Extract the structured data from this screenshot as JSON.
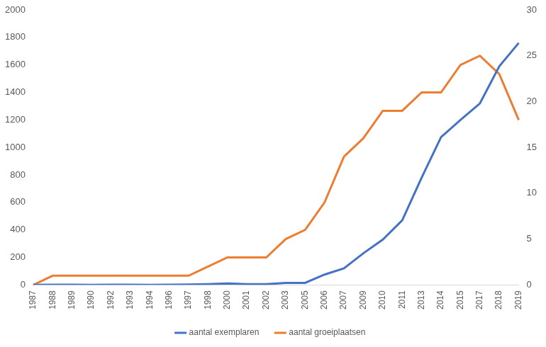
{
  "chart_data": {
    "type": "line",
    "categories": [
      "1987",
      "1988",
      "1989",
      "1990",
      "1992",
      "1993",
      "1994",
      "1996",
      "1997",
      "1998",
      "2000",
      "2001",
      "2002",
      "2003",
      "2005",
      "2006",
      "2007",
      "2009",
      "2010",
      "2011",
      "2013",
      "2014",
      "2015",
      "2017",
      "2018",
      "2019"
    ],
    "series": [
      {
        "name": "aantal exemplaren",
        "color": "#4472c4",
        "values": [
          0,
          2,
          2,
          0,
          2,
          2,
          0,
          2,
          3,
          5,
          10,
          5,
          5,
          15,
          15,
          75,
          120,
          230,
          330,
          470,
          780,
          1075,
          1200,
          1320,
          1590,
          1760
        ]
      },
      {
        "name": "aantal groeiplaatsen",
        "color": "#ed7d31",
        "axis": "y2",
        "values": [
          0,
          1,
          1,
          1,
          1,
          1,
          1,
          1,
          1,
          2,
          3,
          3,
          3,
          5,
          6,
          9,
          14,
          16,
          19,
          19,
          21,
          21,
          24,
          25,
          23,
          18
        ]
      }
    ],
    "ylim": [
      0,
      2000
    ],
    "yticks": [
      0,
      200,
      400,
      600,
      800,
      1000,
      1200,
      1400,
      1600,
      1800,
      2000
    ],
    "y2lim": [
      0,
      30
    ],
    "y2ticks": [
      0,
      5,
      10,
      15,
      20,
      25,
      30
    ],
    "grid": false,
    "legend": "bottom"
  }
}
